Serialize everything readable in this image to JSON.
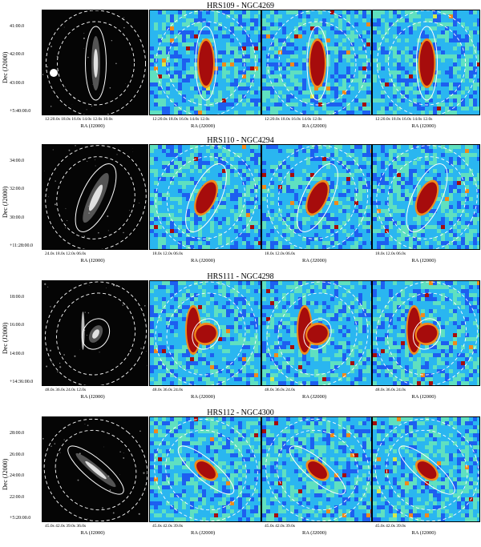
{
  "figure": {
    "rows": [
      {
        "title": "HRS109 - NGC4269",
        "ylabel": "Dec (J2000)",
        "yticks": [
          "41:00.0",
          "42:00.0",
          "43:00.0",
          "+5:40:00.0"
        ],
        "xlabel": "RA (J2000)",
        "xticks": [
          "12:20.0s 18.0s 16.0s 14.0s 12.0s 10.0s",
          "12:20.0s 18.0s 16.0s 14.0s 12.0s",
          "12:20.0s 18.0s 16.0s 14.0s 12.0s",
          "12:20.0s 18.0s 16.0s 14.0s 12.0s"
        ],
        "colormap_bg": "#1e6fd9"
      },
      {
        "title": "HRS110 - NGC4294",
        "ylabel": "Dec (J2000)",
        "yticks": [
          "34:00.0",
          "32:00.0",
          "30:00.0",
          "+11:28:00.0"
        ],
        "xlabel": "RA (J2000)",
        "xticks": [
          "24.0s 18.0s 12.0s 06.0s",
          "18.0s 12.0s 06.0s",
          "18.0s 12.0s 06.0s",
          "18.0s 12.0s 06.0s"
        ],
        "colormap_bg": "#1a4fe0"
      },
      {
        "title": "HRS111 - NGC4298",
        "ylabel": "Dec (J2000)",
        "yticks": [
          "18:00.0",
          "16:00.0",
          "14:00.0",
          "+14:36:00.0"
        ],
        "xlabel": "RA (J2000)",
        "xticks": [
          "48.0s 36.0s 24.0s 12.0s",
          "48.0s 36.0s 24.0s",
          "48.0s 36.0s 24.0s",
          "48.0s 36.0s 24.0s"
        ],
        "colormap_bg": "#1f55e6"
      },
      {
        "title": "HRS112 - NGC4300",
        "ylabel": "Dec (J2000)",
        "yticks": [
          "28:00.0",
          "26:00.0",
          "24:00.0",
          "22:00.0",
          "+5:20:00.0"
        ],
        "xlabel": "RA (J2000)",
        "xticks": [
          "45.0s 42.0s 39.0s 36.0s",
          "45.0s 42.0s 39.0s",
          "45.0s 42.0s 39.0s",
          "45.0s 42.0s 39.0s"
        ],
        "colormap_bg": "#2a7fe8"
      }
    ]
  }
}
